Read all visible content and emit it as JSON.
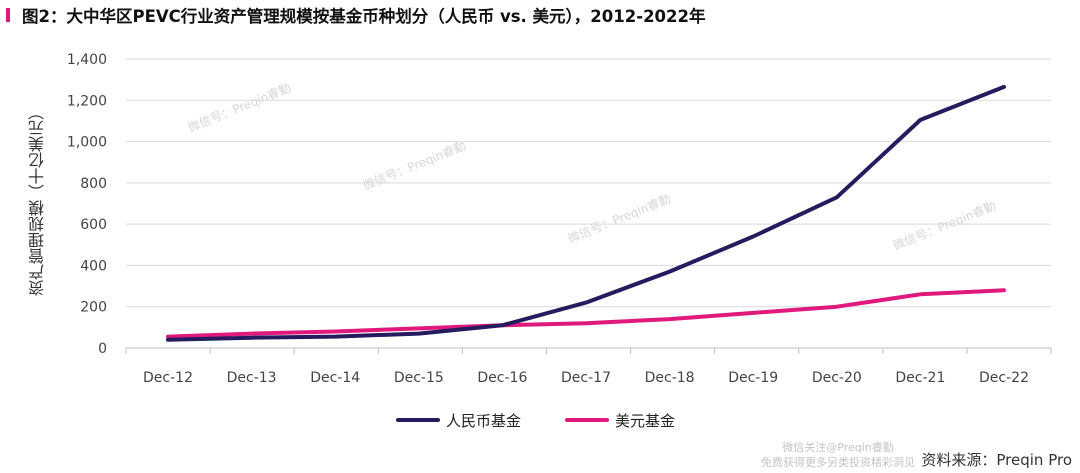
{
  "title": "图2：大中华区PEVC行业资产管理规模按基金币种划分（人民币 vs. 美元），2012-2022年",
  "chart_data": {
    "type": "line",
    "categories": [
      "Dec-12",
      "Dec-13",
      "Dec-14",
      "Dec-15",
      "Dec-16",
      "Dec-17",
      "Dec-18",
      "Dec-19",
      "Dec-20",
      "Dec-21",
      "Dec-22"
    ],
    "series": [
      {
        "name": "人民币基金",
        "color": "#261b5e",
        "values": [
          40,
          50,
          55,
          70,
          110,
          220,
          370,
          540,
          730,
          1105,
          1265
        ]
      },
      {
        "name": "美元基金",
        "color": "#e0197d",
        "values": [
          55,
          70,
          80,
          95,
          110,
          120,
          140,
          170,
          200,
          260,
          280
        ]
      }
    ],
    "ylabel": "资产管理规模（十亿美元）",
    "xlabel": "",
    "ylim": [
      0,
      1400
    ],
    "yticks": [
      0,
      200,
      400,
      600,
      800,
      1000,
      1200,
      1400
    ],
    "ytick_labels": [
      "0",
      "200",
      "400",
      "600",
      "800",
      "1,000",
      "1,200",
      "1,400"
    ],
    "grid": true,
    "legend_position": "bottom-center"
  },
  "watermark": {
    "text": "微信号：Preqin睿勤",
    "footer_line1": "微信关注@Preqin睿勤",
    "footer_line2": "免费获得更多另类投资精彩洞见"
  },
  "source": "资料来源：Preqin Pro"
}
